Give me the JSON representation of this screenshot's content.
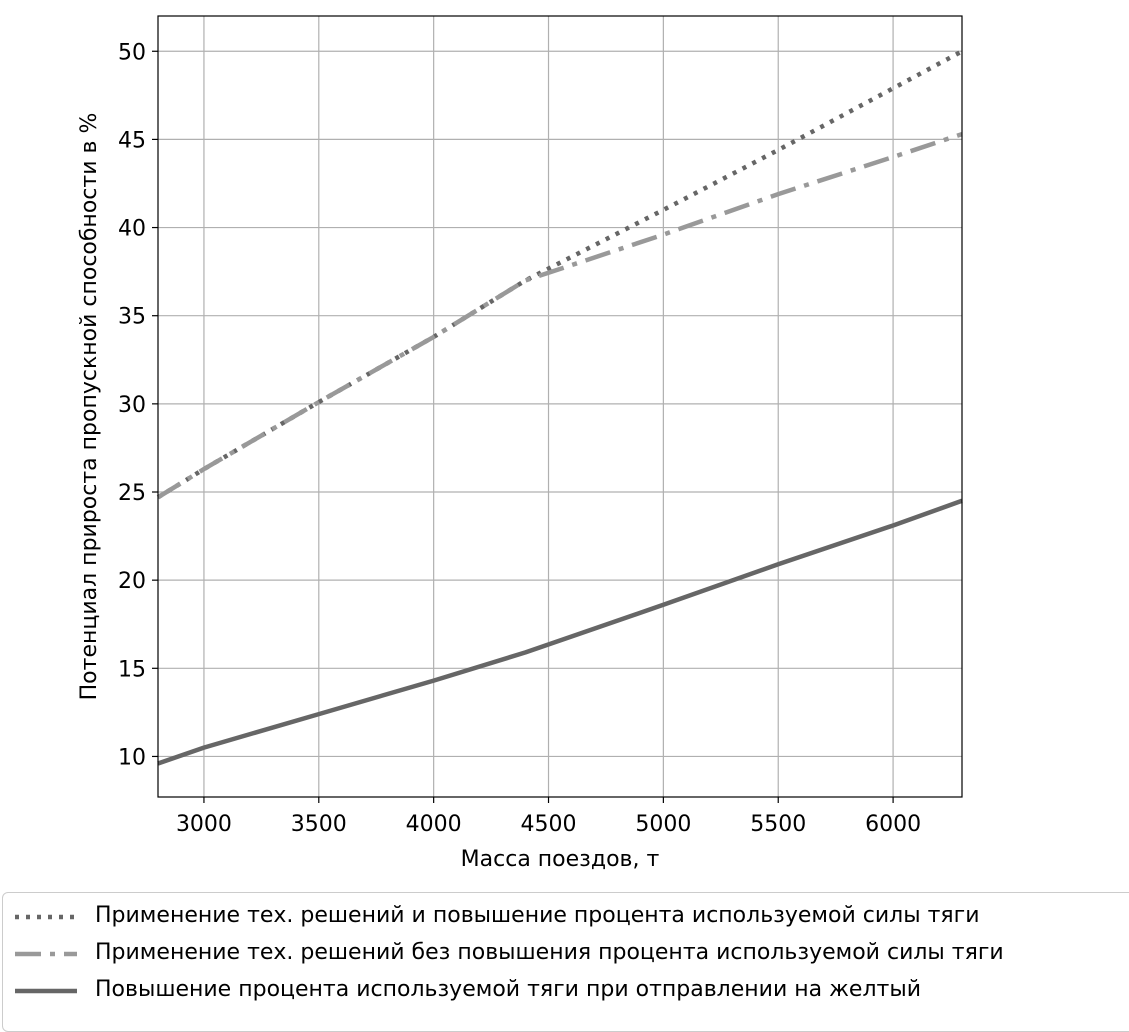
{
  "chart_data": {
    "type": "line",
    "title": "",
    "xlabel": "Масса поездов, т",
    "ylabel": "Потенциал прироста пропускной способности в %",
    "xlim": [
      2800,
      6300
    ],
    "ylim": [
      7.7,
      52
    ],
    "x_ticks": [
      3000,
      3500,
      4000,
      4500,
      5000,
      5500,
      6000
    ],
    "y_ticks": [
      10,
      15,
      20,
      25,
      30,
      35,
      40,
      45,
      50
    ],
    "grid": true,
    "legend_position": "bottom",
    "series": [
      {
        "name": "Применение тех. решений и повышение процента используемой силы тяги",
        "style": "dotted",
        "color": "#666666",
        "x": [
          2800,
          3000,
          3500,
          4000,
          4400,
          5000,
          5500,
          6000,
          6300
        ],
        "y": [
          24.7,
          26.3,
          30.1,
          33.8,
          37.0,
          41.0,
          44.4,
          47.9,
          50.0
        ]
      },
      {
        "name": "Применение тех. решений без повышения процента используемой силы тяги",
        "style": "dashdot",
        "color": "#999999",
        "x": [
          2800,
          3000,
          3500,
          4000,
          4400,
          5000,
          5500,
          6000,
          6300
        ],
        "y": [
          24.7,
          26.3,
          30.1,
          33.8,
          37.0,
          39.6,
          41.9,
          44.0,
          45.3
        ]
      },
      {
        "name": "Повышение процента используемой тяги при отправлении на желтый",
        "style": "solid",
        "color": "#666666",
        "x": [
          2800,
          3000,
          3500,
          4000,
          4400,
          5000,
          5500,
          6000,
          6300
        ],
        "y": [
          9.6,
          10.5,
          12.4,
          14.3,
          15.9,
          18.6,
          20.9,
          23.1,
          24.5
        ]
      }
    ]
  }
}
